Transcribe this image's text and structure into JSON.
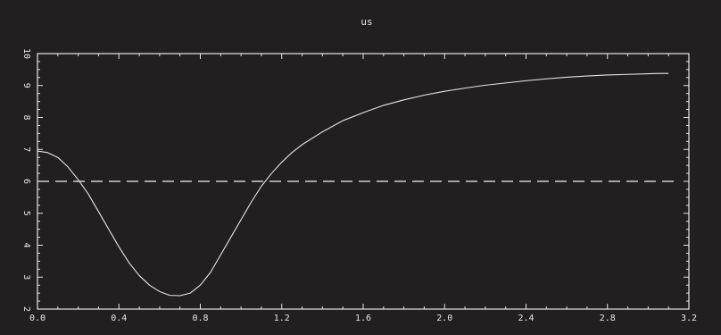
{
  "chart_data": {
    "type": "line",
    "title": "us",
    "xlabel": "",
    "ylabel": "",
    "xlim": [
      0,
      3.2
    ],
    "ylim": [
      2,
      10
    ],
    "x_ticks": [
      0.0,
      0.4,
      0.8,
      1.2,
      1.6,
      2.0,
      2.4,
      2.8,
      3.2
    ],
    "x_tick_labels": [
      "0.0",
      "0.4",
      "0.8",
      "1.2",
      "1.6",
      "2.0",
      "2.4",
      "2.8",
      "3.2"
    ],
    "y_ticks": [
      2,
      3,
      4,
      5,
      6,
      7,
      8,
      9,
      10
    ],
    "y_tick_labels": [
      "2",
      "3",
      "4",
      "5",
      "6",
      "7",
      "8",
      "9",
      "10"
    ],
    "y_tick_labels_rotated": true,
    "grid": false,
    "colors": {
      "background": "#231f20",
      "axes": "#e6e6e6",
      "line": "#e6e6e6",
      "reference": "#cfcfcf"
    },
    "series": [
      {
        "style": "solid",
        "x": [
          0.0,
          0.05,
          0.1,
          0.15,
          0.2,
          0.25,
          0.3,
          0.35,
          0.4,
          0.45,
          0.5,
          0.55,
          0.6,
          0.65,
          0.7,
          0.75,
          0.8,
          0.85,
          0.9,
          0.95,
          1.0,
          1.05,
          1.1,
          1.15,
          1.2,
          1.25,
          1.3,
          1.4,
          1.5,
          1.6,
          1.7,
          1.8,
          1.9,
          2.0,
          2.1,
          2.2,
          2.3,
          2.4,
          2.5,
          2.6,
          2.7,
          2.8,
          2.9,
          3.0,
          3.05,
          3.1
        ],
        "y": [
          6.95,
          6.9,
          6.75,
          6.45,
          6.05,
          5.6,
          5.05,
          4.5,
          3.95,
          3.45,
          3.05,
          2.75,
          2.55,
          2.43,
          2.42,
          2.5,
          2.75,
          3.15,
          3.7,
          4.25,
          4.8,
          5.35,
          5.85,
          6.25,
          6.6,
          6.9,
          7.15,
          7.55,
          7.9,
          8.15,
          8.38,
          8.55,
          8.7,
          8.82,
          8.92,
          9.01,
          9.08,
          9.15,
          9.21,
          9.26,
          9.3,
          9.33,
          9.35,
          9.37,
          9.38,
          9.38
        ]
      },
      {
        "style": "dashed",
        "x": [
          0.0,
          3.15
        ],
        "y": [
          6.0,
          6.0
        ]
      }
    ]
  }
}
